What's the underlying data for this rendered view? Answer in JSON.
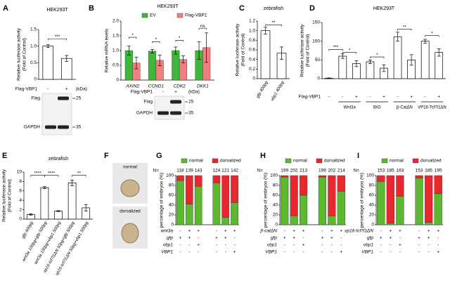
{
  "chart_data": [
    {
      "panel": "A",
      "type": "bar",
      "title": "HEK293T",
      "ylabel": [
        "Relative luciferase activity",
        "(Fold of Control)"
      ],
      "row_label": "Flag-VBP1",
      "categories": [
        "-",
        "+"
      ],
      "values": [
        1.0,
        0.63
      ],
      "errors": [
        0.04,
        0.09
      ],
      "color": "#ffffff",
      "ylim": [
        0,
        1.5
      ],
      "yticks": [
        0,
        0.5,
        {
          "value": 1,
          "label": "1.0"
        },
        1.5
      ],
      "significance": [
        "***"
      ],
      "blot": {
        "unit": "(kDa)",
        "bands": [
          "Flag",
          "GAPDH"
        ],
        "markers": [
          25,
          35
        ]
      }
    },
    {
      "panel": "B",
      "type": "grouped_bar",
      "title": "HEK293T",
      "ylabel": [
        "Relative mRNA levels"
      ],
      "categories": [
        "AXIN2",
        "CCND1",
        "CDK2",
        "DKK1"
      ],
      "series": [
        {
          "name": "EV",
          "color": "#3db83a",
          "values": [
            1.0,
            0.98,
            1.0,
            1.0
          ],
          "errors": [
            0.15,
            0.06,
            0.12,
            0.3
          ]
        },
        {
          "name": "Flag-VBP1",
          "color": "#f08080",
          "values": [
            0.58,
            0.67,
            0.7,
            1.1
          ],
          "errors": [
            0.2,
            0.18,
            0.12,
            0.5
          ]
        }
      ],
      "ylim": [
        0,
        2
      ],
      "yticks": [
        0,
        0.5,
        {
          "value": 1,
          "label": "1.0"
        },
        1.5,
        {
          "value": 2,
          "label": "2.0"
        }
      ],
      "significance": [
        "*",
        "*",
        "*",
        "ns"
      ],
      "blot": {
        "row_label": "Flag-VBP1",
        "lanes": [
          "-",
          "+"
        ],
        "unit": "(kDa)",
        "bands": [
          "Flag",
          "GAPDH"
        ],
        "markers": [
          25,
          35
        ]
      }
    },
    {
      "panel": "C",
      "type": "bar",
      "title": "zebrafish",
      "ylabel": [
        "Relative luciferase activity",
        "(Fold of Control)"
      ],
      "categories": [
        "gfp 400pg",
        "vbp1 400pg"
      ],
      "values": [
        1.0,
        0.53
      ],
      "errors": [
        0.07,
        0.13
      ],
      "color": "#ffffff",
      "ylim": [
        0,
        1.2
      ],
      "yticks": [
        0,
        0.2,
        0.4,
        0.6,
        0.8,
        {
          "value": 1,
          "label": "1.0"
        },
        1.2
      ],
      "significance": [
        "**"
      ]
    },
    {
      "panel": "D",
      "type": "bar",
      "title": "HEK293T",
      "ylabel": [
        "Relative luciferase activity",
        "(Fold of Control)"
      ],
      "row_label": "Flag-VBP1",
      "categories": [
        "-",
        "-",
        "+",
        "-",
        "+",
        "-",
        "+",
        "-",
        "+"
      ],
      "groups": [
        "Wnt3a",
        "BIO",
        "β-CatΔN",
        "VP16-Tcf7l1ΔN"
      ],
      "values": [
        1,
        60,
        40,
        45,
        28,
        112,
        50,
        100,
        70
      ],
      "errors": [
        1,
        6,
        8,
        5,
        9,
        12,
        14,
        5,
        10
      ],
      "color": "#ffffff",
      "ylim": [
        0,
        150
      ],
      "yticks": [
        0,
        50,
        100,
        150
      ],
      "significance": [
        "***",
        "*",
        "*",
        "**",
        "*"
      ]
    },
    {
      "panel": "E",
      "type": "bar",
      "title": "zebrafish",
      "ylabel": [
        "Relative luciferase activity",
        "(Fold of Control)"
      ],
      "categories": [
        "gfp 600pg",
        "wnt3a 100pg+gfp 500pg",
        "wnt3a 100pg+vbp1 500pg",
        "vp16-tcf7l1ΔN 50pg+gfp 500pg",
        "vp16-tcf7l1ΔN 50pg+vbp1 500pg"
      ],
      "values": [
        1.0,
        6.7,
        1.7,
        7.7,
        2.4
      ],
      "errors": [
        0.15,
        0.2,
        0.1,
        0.6,
        0.7
      ],
      "color": "#ffffff",
      "ylim": [
        0,
        10
      ],
      "yticks": [
        0,
        2,
        4,
        6,
        8,
        10
      ],
      "significance": [
        "****",
        "****",
        "**"
      ]
    },
    {
      "panel": "G",
      "type": "stacked_bar",
      "ylabel": [
        "percentage of embryos (%)"
      ],
      "n_label": "N=",
      "n": [
        118,
        139,
        143,
        124,
        121,
        142
      ],
      "series": [
        {
          "name": "normal",
          "color": "#5cb82e",
          "values": [
            90,
            42,
            78,
            85,
            15,
            45
          ]
        },
        {
          "name": "dorsalized",
          "color": "#e8282e",
          "values": [
            10,
            58,
            22,
            15,
            85,
            55
          ]
        }
      ],
      "rows": [
        {
          "label": "wnt3a",
          "values": [
            "-",
            "+",
            "+",
            "-",
            "+",
            "+"
          ]
        },
        {
          "label": "gfp",
          "values": [
            "+",
            "+",
            "-",
            "+",
            "+",
            "-"
          ]
        },
        {
          "label": "vbp1",
          "values": [
            "-",
            "-",
            "+",
            "-",
            "-",
            "-"
          ]
        },
        {
          "label": "VBP1",
          "values": [
            "-",
            "-",
            "-",
            "-",
            "-",
            "+"
          ]
        }
      ],
      "ylim": [
        0,
        100
      ],
      "yticks": [
        0,
        20,
        40,
        60,
        80,
        100
      ]
    },
    {
      "panel": "H",
      "type": "stacked_bar",
      "ylabel": [
        "percentage of embryos (%)"
      ],
      "n_label": "N=",
      "n": [
        199,
        202,
        213,
        199,
        202,
        214
      ],
      "series": [
        {
          "name": "normal",
          "color": "#5cb82e",
          "values": [
            97,
            18,
            60,
            97,
            18,
            68
          ]
        },
        {
          "name": "dorsalized",
          "color": "#e8282e",
          "values": [
            3,
            82,
            40,
            3,
            82,
            32
          ]
        }
      ],
      "rows": [
        {
          "label": "β-catΔN",
          "values": [
            "-",
            "+",
            "+",
            "-",
            "+",
            "+"
          ]
        },
        {
          "label": "gfp",
          "values": [
            "+",
            "+",
            "-",
            "+",
            "+",
            "-"
          ]
        },
        {
          "label": "vbp1",
          "values": [
            "-",
            "-",
            "+",
            "-",
            "-",
            "-"
          ]
        },
        {
          "label": "VBP1",
          "values": [
            "-",
            "-",
            "-",
            "-",
            "-",
            "+"
          ]
        }
      ],
      "ylim": [
        0,
        100
      ],
      "yticks": [
        0,
        20,
        40,
        60,
        80,
        100
      ]
    },
    {
      "panel": "I",
      "type": "stacked_bar",
      "ylabel": [
        "percentage of embryos (%)"
      ],
      "n_label": "N=",
      "n": [
        153,
        185,
        163,
        153,
        185,
        195
      ],
      "series": [
        {
          "name": "normal",
          "color": "#5cb82e",
          "values": [
            88,
            3,
            58,
            95,
            5,
            63
          ]
        },
        {
          "name": "dorsalized",
          "color": "#e8282e",
          "values": [
            12,
            97,
            42,
            5,
            95,
            37
          ]
        }
      ],
      "rows": [
        {
          "label": "vp16-tcf7l1ΔN",
          "values": [
            "-",
            "+",
            "+",
            "-",
            "+",
            "+"
          ]
        },
        {
          "label": "gfp",
          "values": [
            "+",
            "+",
            "-",
            "+",
            "+",
            "-"
          ]
        },
        {
          "label": "vbp1",
          "values": [
            "-",
            "-",
            "+",
            "-",
            "-",
            "-"
          ]
        },
        {
          "label": "VBP1",
          "values": [
            "-",
            "-",
            "-",
            "-",
            "-",
            "+"
          ]
        }
      ],
      "ylim": [
        0,
        100
      ],
      "yticks": [
        0,
        20,
        40,
        60,
        80,
        100
      ]
    }
  ],
  "panel_f": {
    "panel": "F",
    "labels": [
      "normal",
      "dorsalized"
    ]
  }
}
